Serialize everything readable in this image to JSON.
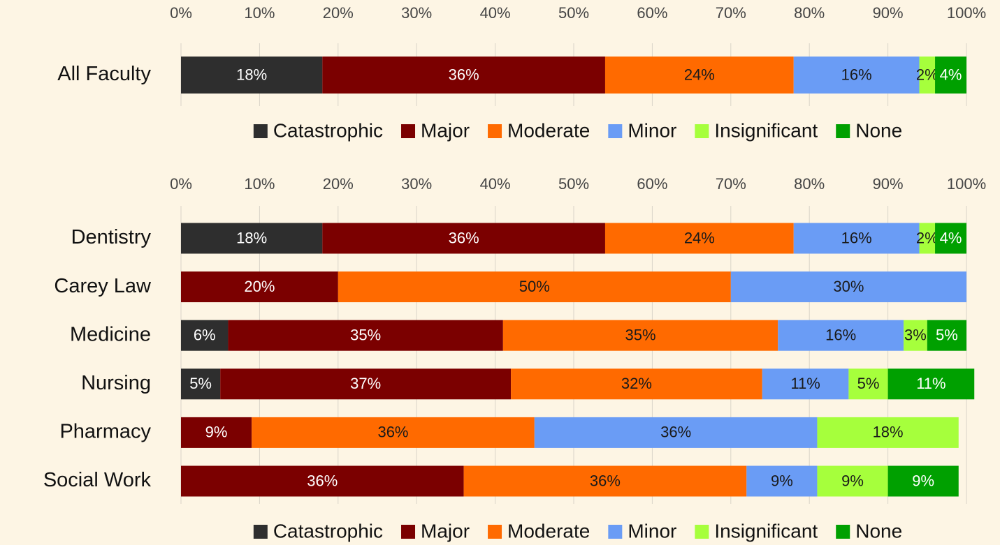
{
  "chart_data": [
    {
      "type": "bar",
      "orientation": "horizontal",
      "stacked": true,
      "grid": true,
      "legend": "bottom",
      "categories": [
        "All Faculty"
      ],
      "xlim": [
        0,
        100
      ],
      "xticks": [
        {
          "value": 0,
          "label": "0%"
        },
        {
          "value": 10,
          "label": "10%"
        },
        {
          "value": 20,
          "label": "20%"
        },
        {
          "value": 30,
          "label": "30%"
        },
        {
          "value": 40,
          "label": "40%"
        },
        {
          "value": 50,
          "label": "50%"
        },
        {
          "value": 60,
          "label": "60%"
        },
        {
          "value": 70,
          "label": "70%"
        },
        {
          "value": 80,
          "label": "80%"
        },
        {
          "value": 90,
          "label": "90%"
        },
        {
          "value": 100,
          "label": "100%"
        }
      ],
      "series": [
        {
          "name": "Catastrophic",
          "color": "#2e2e2e",
          "label_color": "#ffffff",
          "values": [
            18
          ],
          "value_labels": [
            "18%"
          ]
        },
        {
          "name": "Major",
          "color": "#7b0000",
          "label_color": "#ffffff",
          "values": [
            36
          ],
          "value_labels": [
            "36%"
          ]
        },
        {
          "name": "Moderate",
          "color": "#ff6a00",
          "label_color": "#1a1a1a",
          "values": [
            24
          ],
          "value_labels": [
            "24%"
          ]
        },
        {
          "name": "Minor",
          "color": "#6a9cf5",
          "label_color": "#1a1a1a",
          "values": [
            16
          ],
          "value_labels": [
            "16%"
          ]
        },
        {
          "name": "Insignificant",
          "color": "#a6ff3c",
          "label_color": "#1a1a1a",
          "values": [
            2
          ],
          "value_labels": [
            "2%"
          ]
        },
        {
          "name": "None",
          "color": "#00a000",
          "label_color": "#ffffff",
          "values": [
            4
          ],
          "value_labels": [
            "4%"
          ]
        }
      ]
    },
    {
      "type": "bar",
      "orientation": "horizontal",
      "stacked": true,
      "grid": true,
      "legend": "bottom",
      "categories": [
        "Dentistry",
        "Carey Law",
        "Medicine",
        "Nursing",
        "Pharmacy",
        "Social Work"
      ],
      "xlim": [
        0,
        100
      ],
      "xticks": [
        {
          "value": 0,
          "label": "0%"
        },
        {
          "value": 10,
          "label": "10%"
        },
        {
          "value": 20,
          "label": "20%"
        },
        {
          "value": 30,
          "label": "30%"
        },
        {
          "value": 40,
          "label": "40%"
        },
        {
          "value": 50,
          "label": "50%"
        },
        {
          "value": 60,
          "label": "60%"
        },
        {
          "value": 70,
          "label": "70%"
        },
        {
          "value": 80,
          "label": "80%"
        },
        {
          "value": 90,
          "label": "90%"
        },
        {
          "value": 100,
          "label": "100%"
        }
      ],
      "series": [
        {
          "name": "Catastrophic",
          "color": "#2e2e2e",
          "label_color": "#ffffff",
          "values": [
            18,
            null,
            6,
            5,
            null,
            null
          ],
          "value_labels": [
            "18%",
            null,
            "6%",
            "5%",
            null,
            null
          ]
        },
        {
          "name": "Major",
          "color": "#7b0000",
          "label_color": "#ffffff",
          "values": [
            36,
            20,
            35,
            37,
            9,
            36
          ],
          "value_labels": [
            "36%",
            "20%",
            "35%",
            "37%",
            "9%",
            "36%"
          ]
        },
        {
          "name": "Moderate",
          "color": "#ff6a00",
          "label_color": "#1a1a1a",
          "values": [
            24,
            50,
            35,
            32,
            36,
            36
          ],
          "value_labels": [
            "24%",
            "50%",
            "35%",
            "32%",
            "36%",
            "36%"
          ]
        },
        {
          "name": "Minor",
          "color": "#6a9cf5",
          "label_color": "#1a1a1a",
          "values": [
            16,
            30,
            16,
            11,
            36,
            9
          ],
          "value_labels": [
            "16%",
            "30%",
            "16%",
            "11%",
            "36%",
            "9%"
          ]
        },
        {
          "name": "Insignificant",
          "color": "#a6ff3c",
          "label_color": "#1a1a1a",
          "values": [
            2,
            null,
            3,
            5,
            18,
            9
          ],
          "value_labels": [
            "2%",
            null,
            "3%",
            "5%",
            "18%",
            "9%"
          ]
        },
        {
          "name": "None",
          "color": "#00a000",
          "label_color": "#ffffff",
          "values": [
            4,
            null,
            5,
            11,
            null,
            9
          ],
          "value_labels": [
            "4%",
            null,
            "5%",
            "11%",
            null,
            "9%"
          ]
        }
      ]
    }
  ]
}
